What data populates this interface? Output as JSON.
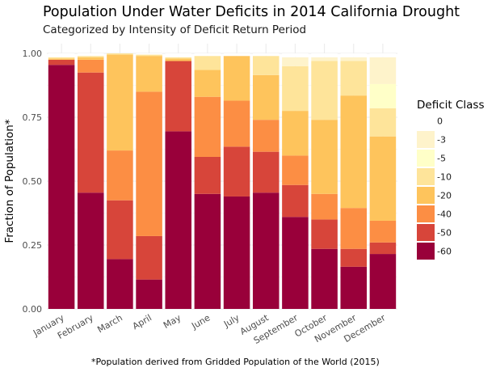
{
  "chart_data": {
    "type": "bar",
    "stacked": true,
    "normalized": true,
    "title": "Population Under Water Deficits in 2014 California Drought",
    "subtitle": "Categorized by Intensity of Deficit Return Period",
    "xlabel": "",
    "ylabel": "Fraction of Population*",
    "caption": "*Population derived from Gridded Population of the World (2015)",
    "ylim": [
      0,
      1
    ],
    "yticks": [
      "0.00",
      "0.25",
      "0.50",
      "0.75",
      "1.00"
    ],
    "yticks_values": [
      0,
      0.25,
      0.5,
      0.75,
      1.0
    ],
    "grid": true,
    "legend_title": "Deficit Class",
    "legend_position": "right",
    "categories": [
      "January",
      "February",
      "March",
      "April",
      "May",
      "June",
      "July",
      "August",
      "September",
      "October",
      "November",
      "December"
    ],
    "series": [
      {
        "name": "-60",
        "color": "#99003a",
        "values": [
          0.955,
          0.455,
          0.195,
          0.115,
          0.695,
          0.45,
          0.44,
          0.455,
          0.36,
          0.235,
          0.165,
          0.215
        ]
      },
      {
        "name": "-50",
        "color": "#d7453a",
        "values": [
          0.02,
          0.47,
          0.23,
          0.17,
          0.275,
          0.145,
          0.195,
          0.16,
          0.125,
          0.115,
          0.07,
          0.045
        ]
      },
      {
        "name": "-40",
        "color": "#fc8e44",
        "values": [
          0.0,
          0.05,
          0.195,
          0.565,
          0.0,
          0.235,
          0.18,
          0.125,
          0.115,
          0.1,
          0.16,
          0.085
        ]
      },
      {
        "name": "-20",
        "color": "#fec45c",
        "values": [
          0.005,
          0.01,
          0.375,
          0.14,
          0.01,
          0.105,
          0.175,
          0.175,
          0.175,
          0.29,
          0.44,
          0.33
        ]
      },
      {
        "name": "-10",
        "color": "#fee49a",
        "values": [
          0.005,
          0.005,
          0.005,
          0.005,
          0.005,
          0.055,
          0.0,
          0.075,
          0.175,
          0.23,
          0.135,
          0.11
        ]
      },
      {
        "name": "-5",
        "color": "#ffffc8",
        "values": [
          0.0,
          0.0,
          0.0,
          0.0,
          0.0,
          0.0,
          0.0,
          0.0,
          0.0,
          0.0,
          0.0,
          0.095
        ]
      },
      {
        "name": "-3",
        "color": "#fef3cb",
        "values": [
          0.0,
          0.0,
          0.0,
          0.0,
          0.0,
          0.0,
          0.0,
          0.0,
          0.035,
          0.015,
          0.015,
          0.105
        ]
      },
      {
        "name": "0",
        "color": "#ffffff",
        "values": [
          0.015,
          0.01,
          0.0,
          0.005,
          0.015,
          0.01,
          0.01,
          0.01,
          0.015,
          0.015,
          0.015,
          0.015
        ]
      }
    ]
  }
}
